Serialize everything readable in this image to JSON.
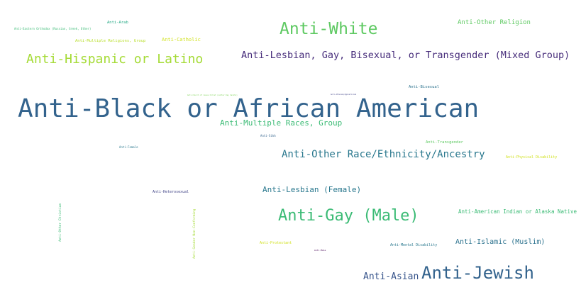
{
  "words": [
    {
      "text": "Anti-Black or African American",
      "color": "#33638d"
    },
    {
      "text": "Anti-White",
      "color": "#5ec962"
    },
    {
      "text": "Anti-Lesbian, Gay, Bisexual, or Transgender (Mixed Group)",
      "color": "#472d7b"
    },
    {
      "text": "Anti-Hispanic or Latino",
      "color": "#a5db36"
    },
    {
      "text": "Anti-Jewish",
      "color": "#33638d"
    },
    {
      "text": "Anti-Gay (Male)",
      "color": "#3bbb75"
    },
    {
      "text": "Anti-Other Race/Ethnicity/Ancestry",
      "color": "#2a788e"
    },
    {
      "text": "Anti-Multiple Races, Group",
      "color": "#3bbb75"
    },
    {
      "text": "Anti-Lesbian (Female)",
      "color": "#2a788e"
    },
    {
      "text": "Anti-Asian",
      "color": "#39568c"
    },
    {
      "text": "Anti-Islamic (Muslim)",
      "color": "#2c728e"
    },
    {
      "text": "Anti-Other Religion",
      "color": "#5ec962"
    },
    {
      "text": "Anti-American Indian or Alaska Native",
      "color": "#3bbb75"
    },
    {
      "text": "Anti-Catholic",
      "color": "#d0e11c"
    },
    {
      "text": "Anti-Multiple Religions, Group",
      "color": "#b8de29"
    },
    {
      "text": "Anti-Arab",
      "color": "#22a884"
    },
    {
      "text": "Anti-Eastern Orthodox (Russian, Greek, Other)",
      "color": "#3bbb75"
    },
    {
      "text": "Anti-Bisexual",
      "color": "#2c728e"
    },
    {
      "text": "Anti-Transgender",
      "color": "#5ec962"
    },
    {
      "text": "Anti-Physical Disability",
      "color": "#d0e11c"
    },
    {
      "text": "Anti-Heterosexual",
      "color": "#414487"
    },
    {
      "text": "Anti-Mental Disability",
      "color": "#2a788e"
    },
    {
      "text": "Anti-Protestant",
      "color": "#d0e11c"
    },
    {
      "text": "Anti-Female",
      "color": "#2a788e"
    },
    {
      "text": "Anti-Sikh",
      "color": "#33638d"
    },
    {
      "text": "Anti-Male",
      "color": "#440154"
    },
    {
      "text": "Anti-Other Christian",
      "color": "#3bbb75"
    },
    {
      "text": "Anti-Gender Non-Conforming",
      "color": "#a5db36"
    },
    {
      "text": "Anti-Church of Jesus Christ (Latter Day Saints)",
      "color": "#7ad151"
    },
    {
      "text": "Anti-Atheism/Agnosticism",
      "color": "#414487"
    }
  ]
}
